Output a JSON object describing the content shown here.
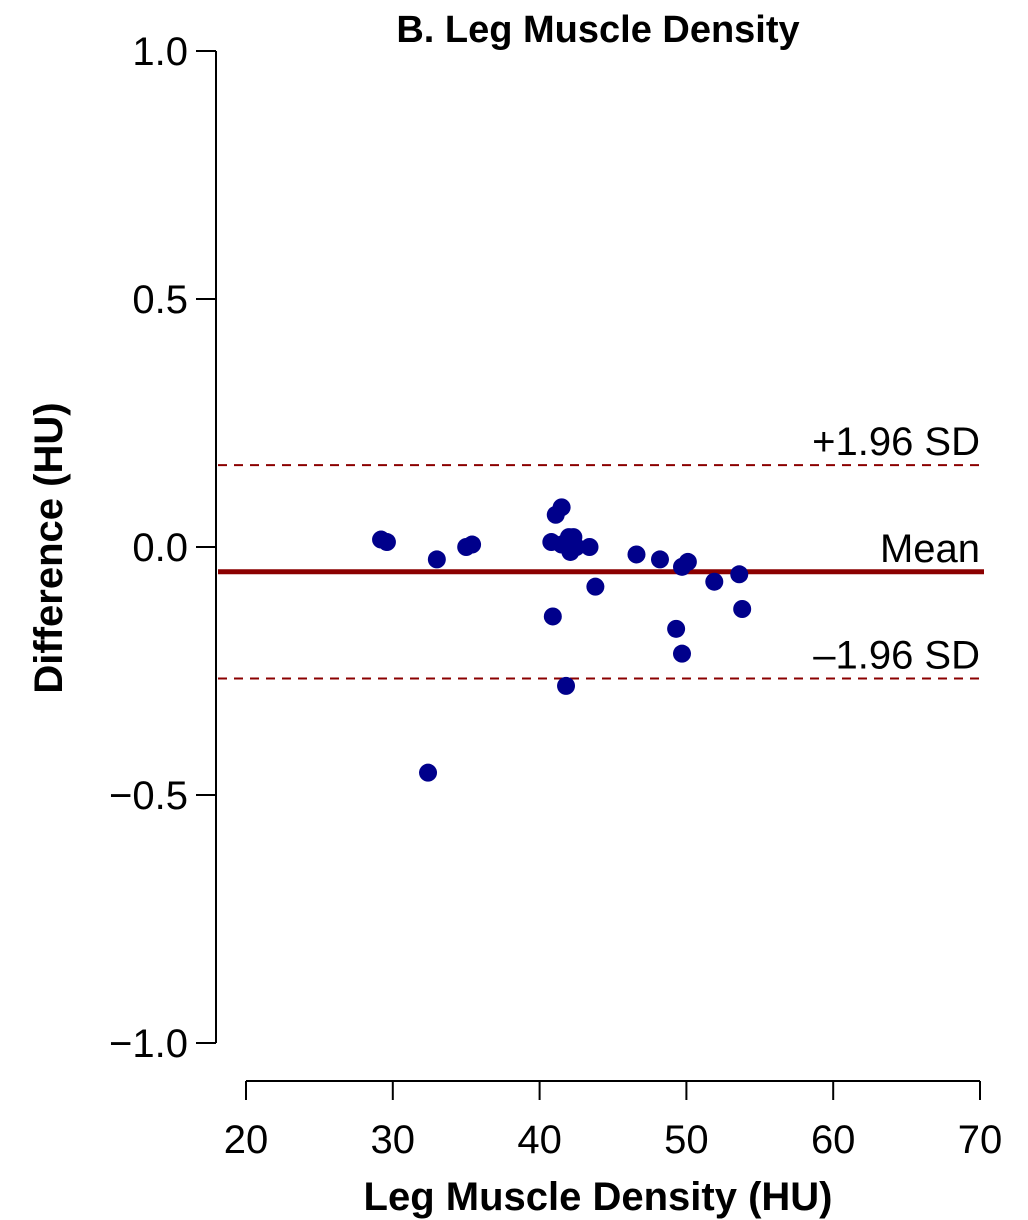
{
  "chart_data": {
    "type": "scatter",
    "title": "B. Leg Muscle Density",
    "xlabel": "Leg Muscle Density (HU)",
    "ylabel": "Difference (HU)",
    "xlim": [
      20,
      70
    ],
    "ylim": [
      -1.0,
      1.0
    ],
    "x_ticks": [
      20,
      30,
      40,
      50,
      60,
      70
    ],
    "x_tick_labels": [
      "20",
      "30",
      "40",
      "50",
      "60",
      "70"
    ],
    "y_ticks": [
      -1.0,
      -0.5,
      0.0,
      0.5,
      1.0
    ],
    "y_tick_labels": [
      "−1.0",
      "−0.5",
      "0.0",
      "0.5",
      "1.0"
    ],
    "grid": false,
    "points": [
      {
        "x": 29.2,
        "y": 0.015
      },
      {
        "x": 29.6,
        "y": 0.01
      },
      {
        "x": 32.4,
        "y": -0.455
      },
      {
        "x": 33.0,
        "y": -0.025
      },
      {
        "x": 35.0,
        "y": 0.0
      },
      {
        "x": 35.4,
        "y": 0.005
      },
      {
        "x": 40.8,
        "y": 0.01
      },
      {
        "x": 40.9,
        "y": -0.14
      },
      {
        "x": 41.1,
        "y": 0.065
      },
      {
        "x": 41.5,
        "y": 0.08
      },
      {
        "x": 41.5,
        "y": 0.005
      },
      {
        "x": 41.8,
        "y": -0.28
      },
      {
        "x": 42.0,
        "y": 0.02
      },
      {
        "x": 42.1,
        "y": -0.01
      },
      {
        "x": 42.3,
        "y": 0.02
      },
      {
        "x": 42.5,
        "y": 0.0
      },
      {
        "x": 43.4,
        "y": 0.0
      },
      {
        "x": 43.8,
        "y": -0.08
      },
      {
        "x": 46.6,
        "y": -0.015
      },
      {
        "x": 48.2,
        "y": -0.025
      },
      {
        "x": 49.3,
        "y": -0.165
      },
      {
        "x": 49.7,
        "y": -0.04
      },
      {
        "x": 49.7,
        "y": -0.215
      },
      {
        "x": 50.1,
        "y": -0.03
      },
      {
        "x": 51.9,
        "y": -0.07
      },
      {
        "x": 53.6,
        "y": -0.055
      },
      {
        "x": 53.8,
        "y": -0.125
      }
    ],
    "reference_lines": [
      {
        "label": "+1.96 SD",
        "y": 0.165,
        "style": "dashed"
      },
      {
        "label": "Mean",
        "y": -0.05,
        "style": "solid"
      },
      {
        "label": "–1.96 SD",
        "y": -0.265,
        "style": "dashed"
      }
    ],
    "colors": {
      "points": "#00008B",
      "mean_line": "#8B0000",
      "sd_lines": "#8B0000",
      "axes": "#000000"
    }
  }
}
